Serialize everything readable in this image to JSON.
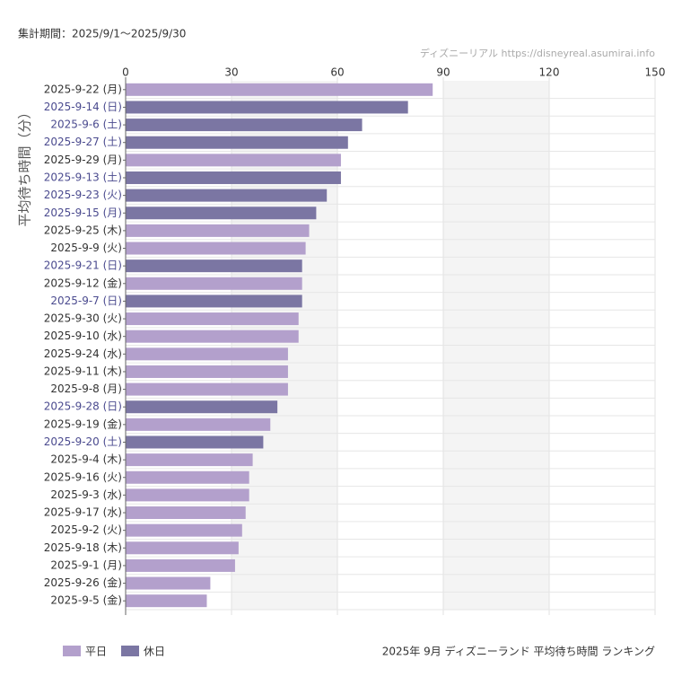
{
  "chart_data": {
    "type": "bar",
    "orientation": "horizontal",
    "period": "集計期間：2025/9/1～2025/9/30",
    "credit": "ディズニーリアル https://disneyreal.asumirai.info",
    "title": "2025年 9月 ディズニーランド 平均待ち時間 ランキング",
    "y_label": "平均待ち時間（分）",
    "categories": [
      "2025-9-22 (月)",
      "2025-9-14 (日)",
      "2025-9-6 (土)",
      "2025-9-27 (土)",
      "2025-9-29 (月)",
      "2025-9-13 (土)",
      "2025-9-23 (火)",
      "2025-9-15 (月)",
      "2025-9-25 (木)",
      "2025-9-9 (火)",
      "2025-9-21 (日)",
      "2025-9-12 (金)",
      "2025-9-7 (日)",
      "2025-9-30 (火)",
      "2025-9-10 (水)",
      "2025-9-24 (水)",
      "2025-9-11 (木)",
      "2025-9-8 (月)",
      "2025-9-28 (日)",
      "2025-9-19 (金)",
      "2025-9-20 (土)",
      "2025-9-4 (木)",
      "2025-9-16 (火)",
      "2025-9-3 (水)",
      "2025-9-17 (水)",
      "2025-9-2 (火)",
      "2025-9-18 (木)",
      "2025-9-1 (月)",
      "2025-9-26 (金)",
      "2025-9-5 (金)"
    ],
    "series": [
      {
        "name": "平日",
        "color": "#b3a0cc",
        "label_color": "#333333",
        "values": [
          87,
          null,
          null,
          null,
          61,
          null,
          null,
          null,
          52,
          51,
          null,
          50,
          null,
          49,
          49,
          46,
          46,
          46,
          null,
          41,
          null,
          36,
          35,
          35,
          34,
          33,
          32,
          31,
          24,
          23
        ]
      },
      {
        "name": "休日",
        "color": "#7b76a3",
        "label_color": "#4b4b8f",
        "values": [
          null,
          80,
          67,
          63,
          null,
          61,
          57,
          54,
          null,
          null,
          50,
          null,
          50,
          null,
          null,
          null,
          null,
          null,
          43,
          null,
          39,
          null,
          null,
          null,
          null,
          null,
          null,
          null,
          null,
          null
        ]
      }
    ],
    "xlim": [
      0,
      150
    ],
    "xticks": [
      0,
      30,
      60,
      90,
      120,
      150
    ],
    "grid": true,
    "legend": "bottom-left"
  }
}
